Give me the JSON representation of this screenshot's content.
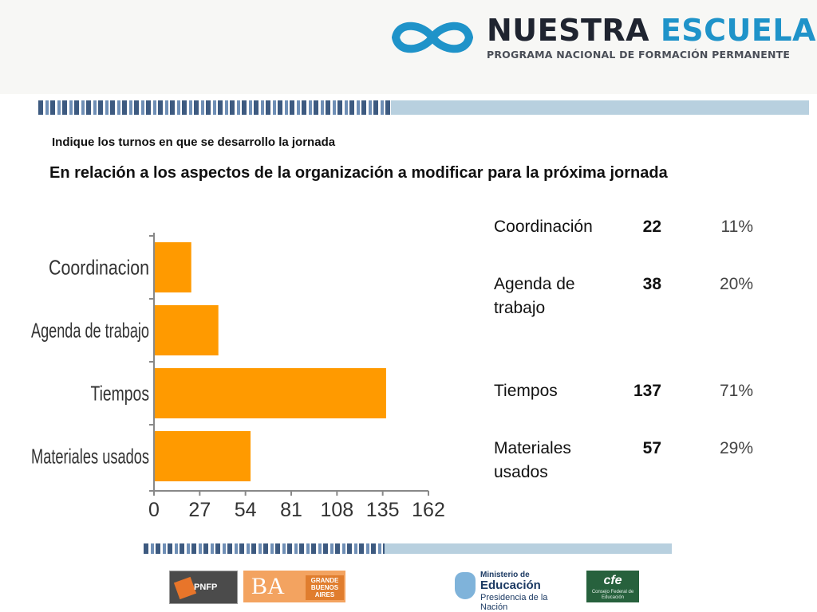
{
  "header": {
    "logo_title_main": "NUESTRA",
    "logo_title_accent": "ESCUELA",
    "logo_subtitle": "PROGRAMA NACIONAL DE FORMACIÓN PERMANENTE"
  },
  "subtitle": "Indique los turnos en que se desarrollo la jornada",
  "heading": "En relación a los aspectos de la organización a modificar para la próxima jornada",
  "stats": [
    {
      "label": "Coordinación",
      "count": "22",
      "pct": "11%"
    },
    {
      "label": "Agenda de trabajo",
      "count": "38",
      "pct": "20%"
    },
    {
      "label": "Tiempos",
      "count": "137",
      "pct": "71%"
    },
    {
      "label": "Materiales usados",
      "count": "57",
      "pct": "29%"
    }
  ],
  "chart_data": {
    "type": "bar",
    "orientation": "horizontal",
    "categories": [
      "Coordinacion",
      "Agenda de trabajo",
      "Tiempos",
      "Materiales usados"
    ],
    "values": [
      22,
      38,
      137,
      57
    ],
    "xticks": [
      0,
      27,
      54,
      81,
      108,
      135,
      162
    ],
    "xlim": [
      0,
      162
    ],
    "title": "",
    "xlabel": "",
    "ylabel": "",
    "bar_color": "#ff9a00"
  },
  "footer": {
    "pnfp": "PNFP",
    "ba_big": "BA",
    "ba_small": "GRANDE BUENOS AIRES",
    "min_line1": "Ministerio de",
    "min_line2": "Educación",
    "min_line3": "Presidencia de la Nación",
    "cfe_line1": "cfe",
    "cfe_line2": "Consejo Federal de Educación"
  }
}
